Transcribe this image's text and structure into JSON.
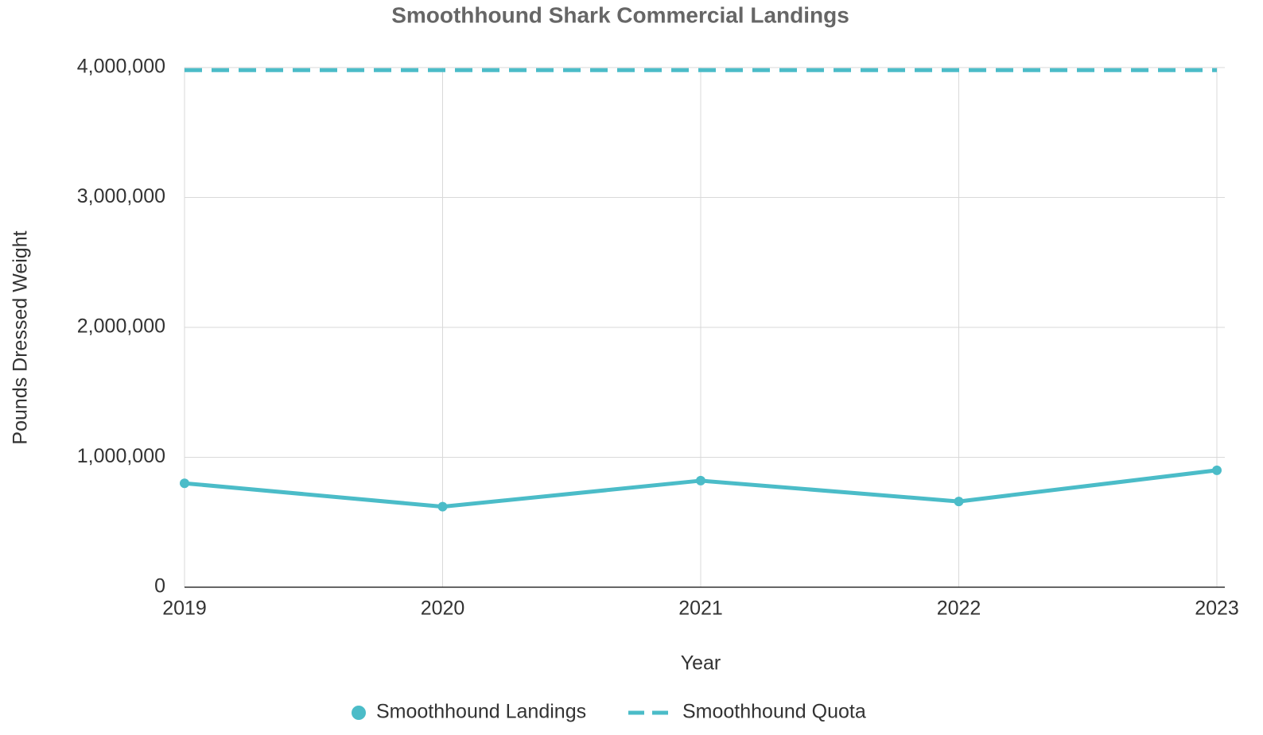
{
  "chart_data": {
    "type": "line",
    "title": "Smoothhound Shark Commercial Landings",
    "xlabel": "Year",
    "ylabel": "Pounds Dressed Weight",
    "x": [
      2019,
      2020,
      2021,
      2022,
      2023
    ],
    "xlim": [
      2019,
      2023
    ],
    "xticks": [
      2019,
      2020,
      2021,
      2022,
      2023
    ],
    "ylim": [
      0,
      4000000
    ],
    "yticks": [
      0,
      {
        "value": 1000000,
        "label": "1,000,000"
      },
      {
        "value": 2000000,
        "label": "2,000,000"
      },
      {
        "value": 3000000,
        "label": "3,000,000"
      },
      {
        "value": 4000000,
        "label": "4,000,000"
      }
    ],
    "grid": true,
    "legend": "bottom",
    "series": [
      {
        "name": "Smoothhound Landings",
        "color": "#4bbcc8",
        "style": "solid",
        "markers": true,
        "values": [
          800000,
          620000,
          820000,
          660000,
          900000
        ]
      },
      {
        "name": "Smoothhound Quota",
        "color": "#4bbcc8",
        "style": "dashed",
        "markers": false,
        "values": [
          3980000,
          3980000,
          3980000,
          3980000,
          3980000
        ]
      }
    ]
  }
}
